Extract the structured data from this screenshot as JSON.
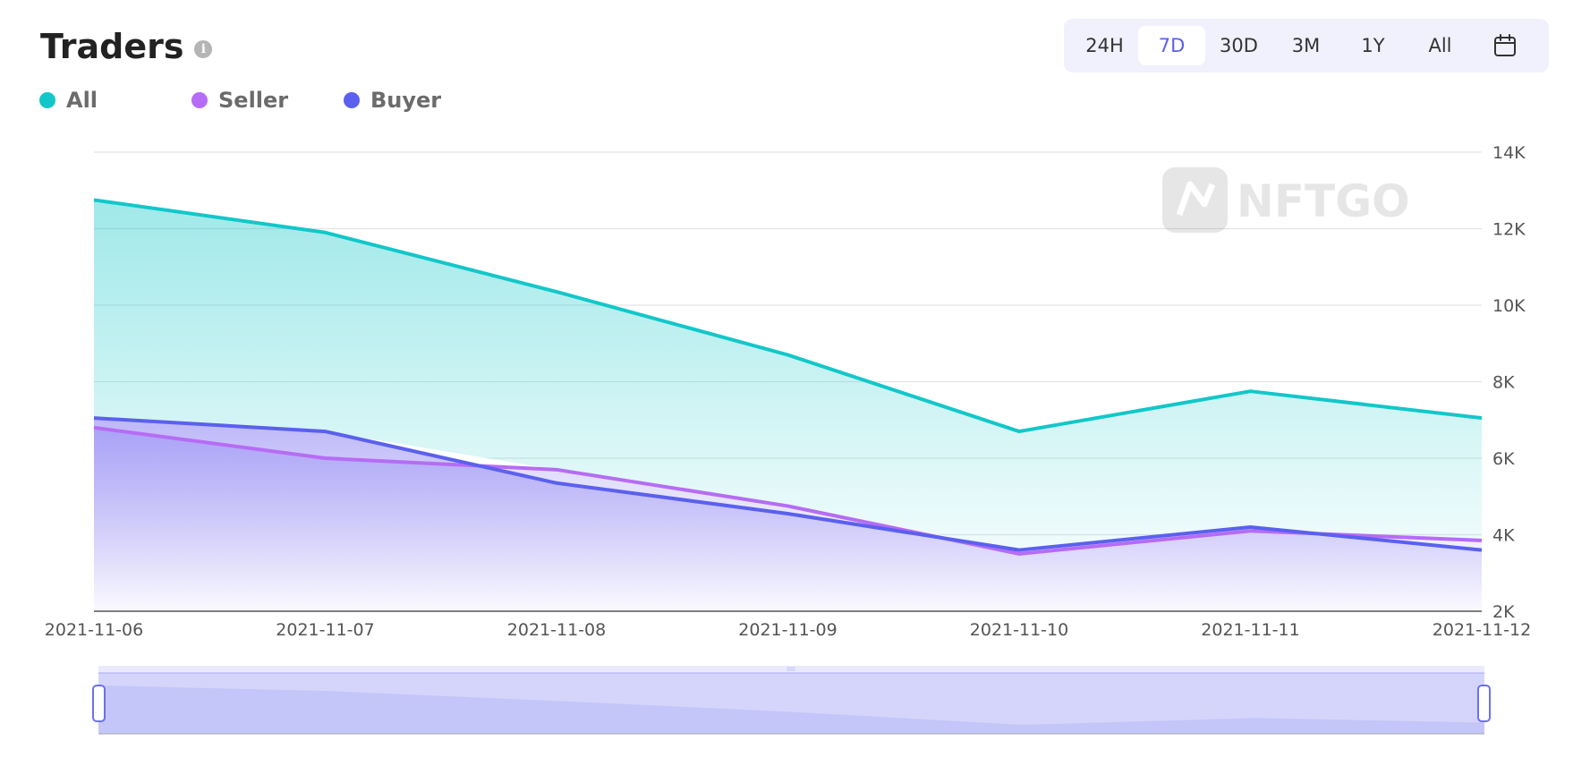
{
  "header": {
    "title": "Traders"
  },
  "legend": [
    {
      "label": "All",
      "color": "#12c7c9"
    },
    {
      "label": "Seller",
      "color": "#b66cf4"
    },
    {
      "label": "Buyer",
      "color": "#5b60ee"
    }
  ],
  "range_selector": {
    "options": [
      "24H",
      "7D",
      "30D",
      "3M",
      "1Y",
      "All"
    ],
    "active": "7D",
    "calendar_icon": "calendar-icon"
  },
  "watermark": {
    "text": "NFTGO"
  },
  "chart_data": {
    "type": "area",
    "x": [
      "2021-11-06",
      "2021-11-07",
      "2021-11-08",
      "2021-11-09",
      "2021-11-10",
      "2021-11-11",
      "2021-11-12"
    ],
    "series": [
      {
        "name": "All",
        "values": [
          12750,
          11900,
          10350,
          8700,
          6700,
          7750,
          7050
        ],
        "color": "#12c7c9"
      },
      {
        "name": "Seller",
        "values": [
          6800,
          6000,
          5700,
          4750,
          3500,
          4100,
          3850
        ],
        "color": "#b66cf4"
      },
      {
        "name": "Buyer",
        "values": [
          7050,
          6700,
          5350,
          4550,
          3600,
          4200,
          3600
        ],
        "color": "#5b60ee"
      }
    ],
    "y_ticks": [
      "2K",
      "4K",
      "6K",
      "8K",
      "10K",
      "12K",
      "14K"
    ],
    "ylim": [
      2000,
      14000
    ],
    "grid": true,
    "legend_position": "top-left"
  }
}
